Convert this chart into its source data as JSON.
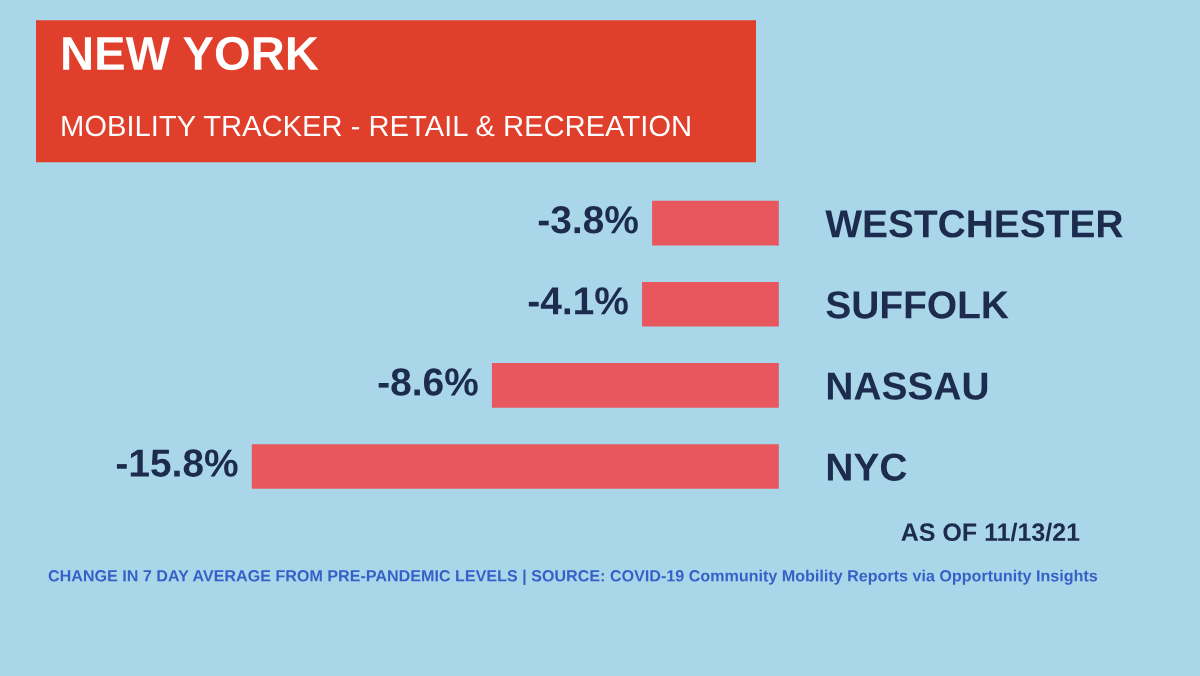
{
  "chart_data": {
    "type": "bar",
    "orientation": "horizontal",
    "title": "NEW YORK",
    "subtitle": "MOBILITY TRACKER - RETAIL & RECREATION",
    "categories": [
      "WESTCHESTER",
      "SUFFOLK",
      "NASSAU",
      "NYC"
    ],
    "values": [
      -3.8,
      -4.1,
      -8.6,
      -15.8
    ],
    "value_labels": [
      "-3.8%",
      "-4.1%",
      "-8.6%",
      "-15.8%"
    ],
    "color": "#e8575e",
    "grid": false,
    "legend": false,
    "annotations": [
      "AS OF 11/13/21",
      "CHANGE IN 7 DAY AVERAGE FROM PRE-PANDEMIC LEVELS | SOURCE: COVID-19 Community Mobility Reports via Opportunity Insights"
    ]
  }
}
